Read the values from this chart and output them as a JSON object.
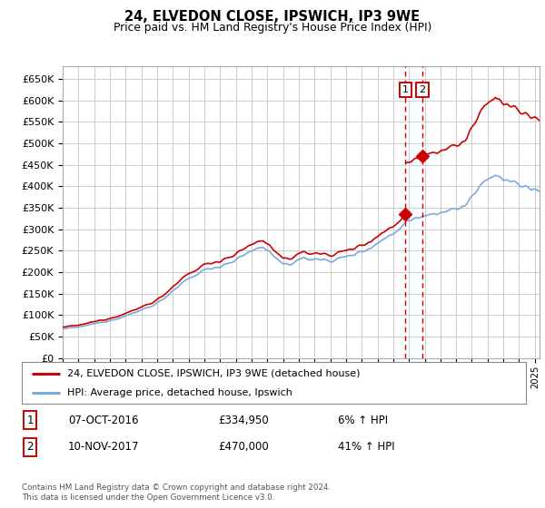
{
  "title": "24, ELVEDON CLOSE, IPSWICH, IP3 9WE",
  "subtitle": "Price paid vs. HM Land Registry's House Price Index (HPI)",
  "legend_line1": "24, ELVEDON CLOSE, IPSWICH, IP3 9WE (detached house)",
  "legend_line2": "HPI: Average price, detached house, Ipswich",
  "footnote": "Contains HM Land Registry data © Crown copyright and database right 2024.\nThis data is licensed under the Open Government Licence v3.0.",
  "purchase1_date": "07-OCT-2016",
  "purchase1_price": 334950,
  "purchase1_pct": "6% ↑ HPI",
  "purchase2_date": "10-NOV-2017",
  "purchase2_price": 470000,
  "purchase2_pct": "41% ↑ HPI",
  "ylim": [
    0,
    680000
  ],
  "yticks": [
    0,
    50000,
    100000,
    150000,
    200000,
    250000,
    300000,
    350000,
    400000,
    450000,
    500000,
    550000,
    600000,
    650000
  ],
  "line_color_red": "#cc0000",
  "line_color_blue": "#7aaadd",
  "bg_color": "#ffffff",
  "grid_color": "#cccccc",
  "marker_box_color": "#cc0000",
  "dashed_line_color": "#cc0000",
  "purchase1_year": 2016.77,
  "purchase2_year": 2017.86,
  "annotation_box_fill": "#ddeeff",
  "xlim_start": 1995,
  "xlim_end": 2025.3
}
